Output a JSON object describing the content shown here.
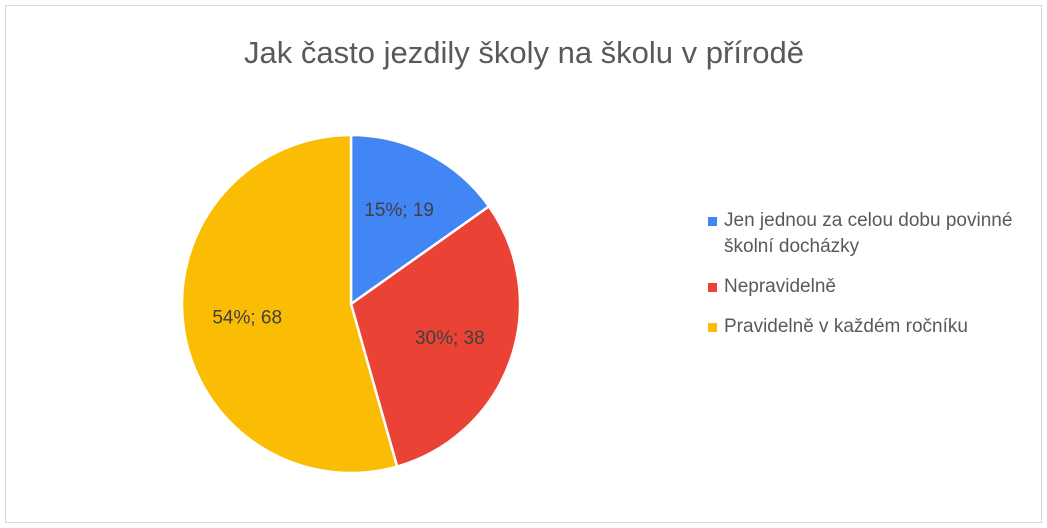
{
  "chart_data": {
    "type": "pie",
    "title": "Jak často jezdily školy na školu v přírodě",
    "categories": [
      "Jen jednou za celou dobu povinné školní docházky",
      "Nepravidelně",
      "Pravidelně v každém ročníku"
    ],
    "values": [
      19,
      38,
      68
    ],
    "value_labels": [
      "15%; 19",
      "30%; 38",
      "54%; 68"
    ],
    "colors": [
      "#4285f4",
      "#ea4335",
      "#fbbc04"
    ],
    "legend": "right"
  }
}
